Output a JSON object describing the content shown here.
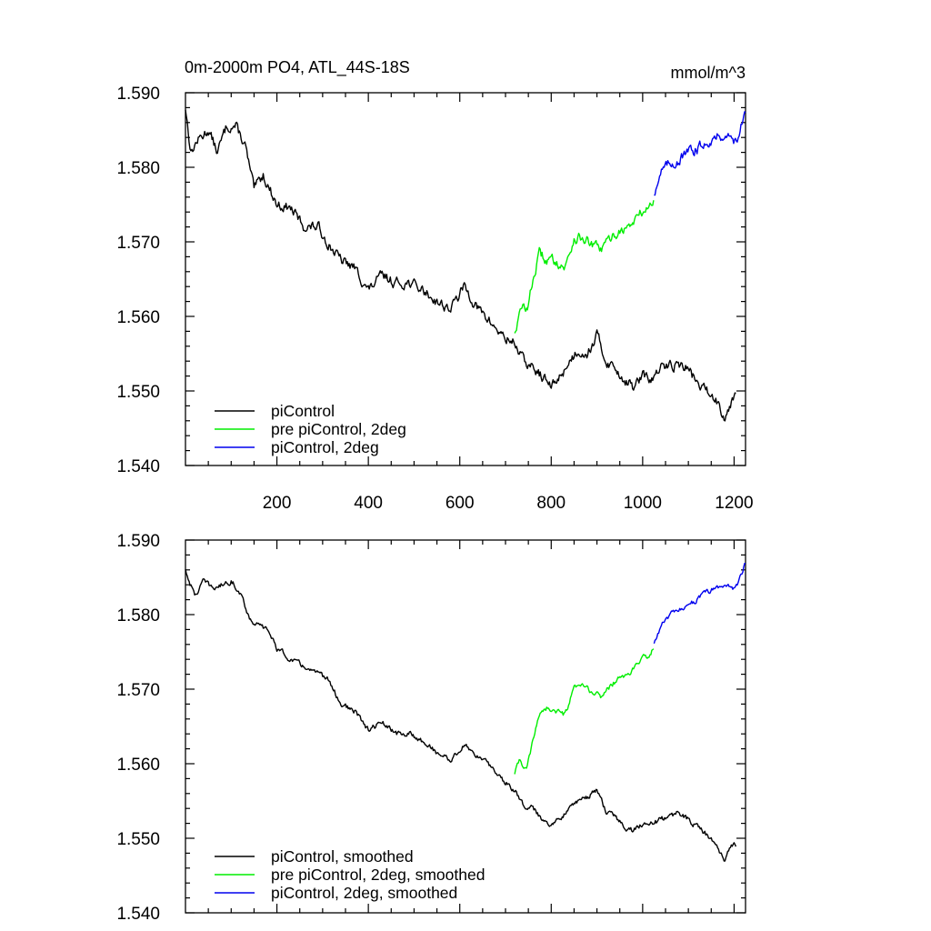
{
  "chart_data": [
    {
      "type": "line",
      "title": "0m-2000m PO4, ATL_44S-18S",
      "units": "mmol/m^3",
      "xlim": [
        0,
        1225
      ],
      "ylim": [
        1.54,
        1.59
      ],
      "x_ticks": [
        200,
        400,
        600,
        800,
        1000,
        1200
      ],
      "x_tick_labels": [
        "200",
        "400",
        "600",
        "800",
        "1000",
        "1200"
      ],
      "y_ticks": [
        1.54,
        1.55,
        1.56,
        1.57,
        1.58,
        1.59
      ],
      "y_tick_labels": [
        "1.540",
        "1.550",
        "1.560",
        "1.570",
        "1.580",
        "1.590"
      ],
      "legend_position": "bottom-left",
      "series": [
        {
          "name": "piControl",
          "color": "#000000",
          "x_range": [
            0,
            1205
          ],
          "keypoints": [
            [
              0,
              1.588
            ],
            [
              12,
              1.582
            ],
            [
              25,
              1.5835
            ],
            [
              50,
              1.585
            ],
            [
              70,
              1.582
            ],
            [
              90,
              1.5855
            ],
            [
              110,
              1.5855
            ],
            [
              130,
              1.583
            ],
            [
              150,
              1.577
            ],
            [
              170,
              1.579
            ],
            [
              200,
              1.575
            ],
            [
              230,
              1.5745
            ],
            [
              260,
              1.572
            ],
            [
              290,
              1.572
            ],
            [
              310,
              1.57
            ],
            [
              340,
              1.5675
            ],
            [
              370,
              1.5665
            ],
            [
              400,
              1.5635
            ],
            [
              430,
              1.5655
            ],
            [
              460,
              1.5645
            ],
            [
              490,
              1.5645
            ],
            [
              520,
              1.5635
            ],
            [
              550,
              1.562
            ],
            [
              580,
              1.561
            ],
            [
              610,
              1.564
            ],
            [
              640,
              1.561
            ],
            [
              670,
              1.559
            ],
            [
              700,
              1.557
            ],
            [
              720,
              1.5565
            ],
            [
              740,
              1.554
            ],
            [
              760,
              1.553
            ],
            [
              780,
              1.552
            ],
            [
              800,
              1.5505
            ],
            [
              820,
              1.552
            ],
            [
              840,
              1.554
            ],
            [
              860,
              1.5555
            ],
            [
              880,
              1.555
            ],
            [
              900,
              1.5575
            ],
            [
              920,
              1.554
            ],
            [
              940,
              1.553
            ],
            [
              960,
              1.5515
            ],
            [
              980,
              1.5505
            ],
            [
              1000,
              1.552
            ],
            [
              1020,
              1.5515
            ],
            [
              1040,
              1.553
            ],
            [
              1060,
              1.5535
            ],
            [
              1080,
              1.5535
            ],
            [
              1100,
              1.553
            ],
            [
              1120,
              1.551
            ],
            [
              1140,
              1.55
            ],
            [
              1160,
              1.549
            ],
            [
              1180,
              1.5465
            ],
            [
              1190,
              1.548
            ],
            [
              1200,
              1.5495
            ],
            [
              1205,
              1.55
            ]
          ]
        },
        {
          "name": "pre piControl, 2deg",
          "color": "#00ee00",
          "x_range": [
            720,
            1025
          ],
          "keypoints": [
            [
              720,
              1.558
            ],
            [
              735,
              1.561
            ],
            [
              750,
              1.5615
            ],
            [
              760,
              1.565
            ],
            [
              775,
              1.5685
            ],
            [
              790,
              1.5675
            ],
            [
              810,
              1.5675
            ],
            [
              830,
              1.5665
            ],
            [
              850,
              1.5705
            ],
            [
              870,
              1.5705
            ],
            [
              890,
              1.5695
            ],
            [
              910,
              1.569
            ],
            [
              930,
              1.5705
            ],
            [
              950,
              1.5715
            ],
            [
              970,
              1.572
            ],
            [
              990,
              1.5735
            ],
            [
              1010,
              1.5745
            ],
            [
              1025,
              1.5755
            ]
          ]
        },
        {
          "name": "piControl, 2deg",
          "color": "#0000ee",
          "x_range": [
            1025,
            1225
          ],
          "keypoints": [
            [
              1025,
              1.5765
            ],
            [
              1040,
              1.5795
            ],
            [
              1060,
              1.5805
            ],
            [
              1080,
              1.581
            ],
            [
              1100,
              1.582
            ],
            [
              1120,
              1.5825
            ],
            [
              1140,
              1.5835
            ],
            [
              1160,
              1.584
            ],
            [
              1180,
              1.5845
            ],
            [
              1200,
              1.5835
            ],
            [
              1210,
              1.5845
            ],
            [
              1225,
              1.587
            ]
          ]
        }
      ]
    },
    {
      "type": "line",
      "xlim": [
        0,
        1225
      ],
      "ylim": [
        1.54,
        1.59
      ],
      "x_ticks": [
        200,
        400,
        600,
        800,
        1000,
        1200
      ],
      "y_ticks": [
        1.54,
        1.55,
        1.56,
        1.57,
        1.58,
        1.59
      ],
      "y_tick_labels": [
        "1.540",
        "1.550",
        "1.560",
        "1.570",
        "1.580",
        "1.590"
      ],
      "legend_position": "bottom-left",
      "series": [
        {
          "name": "piControl, smoothed",
          "color": "#000000",
          "x_range": [
            0,
            1205
          ],
          "keypoints": [
            [
              0,
              1.586
            ],
            [
              20,
              1.5825
            ],
            [
              40,
              1.5845
            ],
            [
              60,
              1.5835
            ],
            [
              80,
              1.584
            ],
            [
              100,
              1.5845
            ],
            [
              120,
              1.583
            ],
            [
              140,
              1.5795
            ],
            [
              160,
              1.5785
            ],
            [
              180,
              1.578
            ],
            [
              200,
              1.5755
            ],
            [
              230,
              1.574
            ],
            [
              260,
              1.573
            ],
            [
              290,
              1.572
            ],
            [
              310,
              1.5715
            ],
            [
              340,
              1.568
            ],
            [
              370,
              1.567
            ],
            [
              400,
              1.5645
            ],
            [
              430,
              1.5655
            ],
            [
              460,
              1.564
            ],
            [
              490,
              1.564
            ],
            [
              520,
              1.563
            ],
            [
              550,
              1.5615
            ],
            [
              580,
              1.5605
            ],
            [
              610,
              1.5625
            ],
            [
              640,
              1.561
            ],
            [
              670,
              1.5595
            ],
            [
              700,
              1.5575
            ],
            [
              720,
              1.5565
            ],
            [
              740,
              1.5545
            ],
            [
              760,
              1.554
            ],
            [
              780,
              1.5525
            ],
            [
              800,
              1.552
            ],
            [
              820,
              1.5525
            ],
            [
              840,
              1.5545
            ],
            [
              860,
              1.555
            ],
            [
              880,
              1.5555
            ],
            [
              900,
              1.5565
            ],
            [
              920,
              1.5535
            ],
            [
              940,
              1.553
            ],
            [
              960,
              1.5515
            ],
            [
              980,
              1.551
            ],
            [
              1000,
              1.552
            ],
            [
              1020,
              1.552
            ],
            [
              1040,
              1.5525
            ],
            [
              1060,
              1.553
            ],
            [
              1080,
              1.5535
            ],
            [
              1100,
              1.5525
            ],
            [
              1120,
              1.5515
            ],
            [
              1140,
              1.5505
            ],
            [
              1160,
              1.549
            ],
            [
              1180,
              1.547
            ],
            [
              1190,
              1.5485
            ],
            [
              1200,
              1.5495
            ],
            [
              1205,
              1.5485
            ]
          ]
        },
        {
          "name": "pre piControl, 2deg, smoothed",
          "color": "#00ee00",
          "x_range": [
            720,
            1025
          ],
          "keypoints": [
            [
              720,
              1.5585
            ],
            [
              730,
              1.5605
            ],
            [
              745,
              1.559
            ],
            [
              760,
              1.563
            ],
            [
              775,
              1.567
            ],
            [
              790,
              1.5675
            ],
            [
              810,
              1.567
            ],
            [
              830,
              1.5665
            ],
            [
              850,
              1.57
            ],
            [
              870,
              1.5705
            ],
            [
              890,
              1.5695
            ],
            [
              910,
              1.569
            ],
            [
              930,
              1.5705
            ],
            [
              950,
              1.5715
            ],
            [
              970,
              1.572
            ],
            [
              990,
              1.5735
            ],
            [
              1010,
              1.5745
            ],
            [
              1025,
              1.5755
            ]
          ]
        },
        {
          "name": "piControl, 2deg, smoothed",
          "color": "#0000ee",
          "x_range": [
            1025,
            1225
          ],
          "keypoints": [
            [
              1025,
              1.576
            ],
            [
              1040,
              1.5785
            ],
            [
              1060,
              1.58
            ],
            [
              1080,
              1.5805
            ],
            [
              1100,
              1.5815
            ],
            [
              1120,
              1.582
            ],
            [
              1140,
              1.583
            ],
            [
              1160,
              1.5835
            ],
            [
              1180,
              1.584
            ],
            [
              1200,
              1.5835
            ],
            [
              1210,
              1.5845
            ],
            [
              1225,
              1.587
            ]
          ]
        }
      ]
    }
  ]
}
